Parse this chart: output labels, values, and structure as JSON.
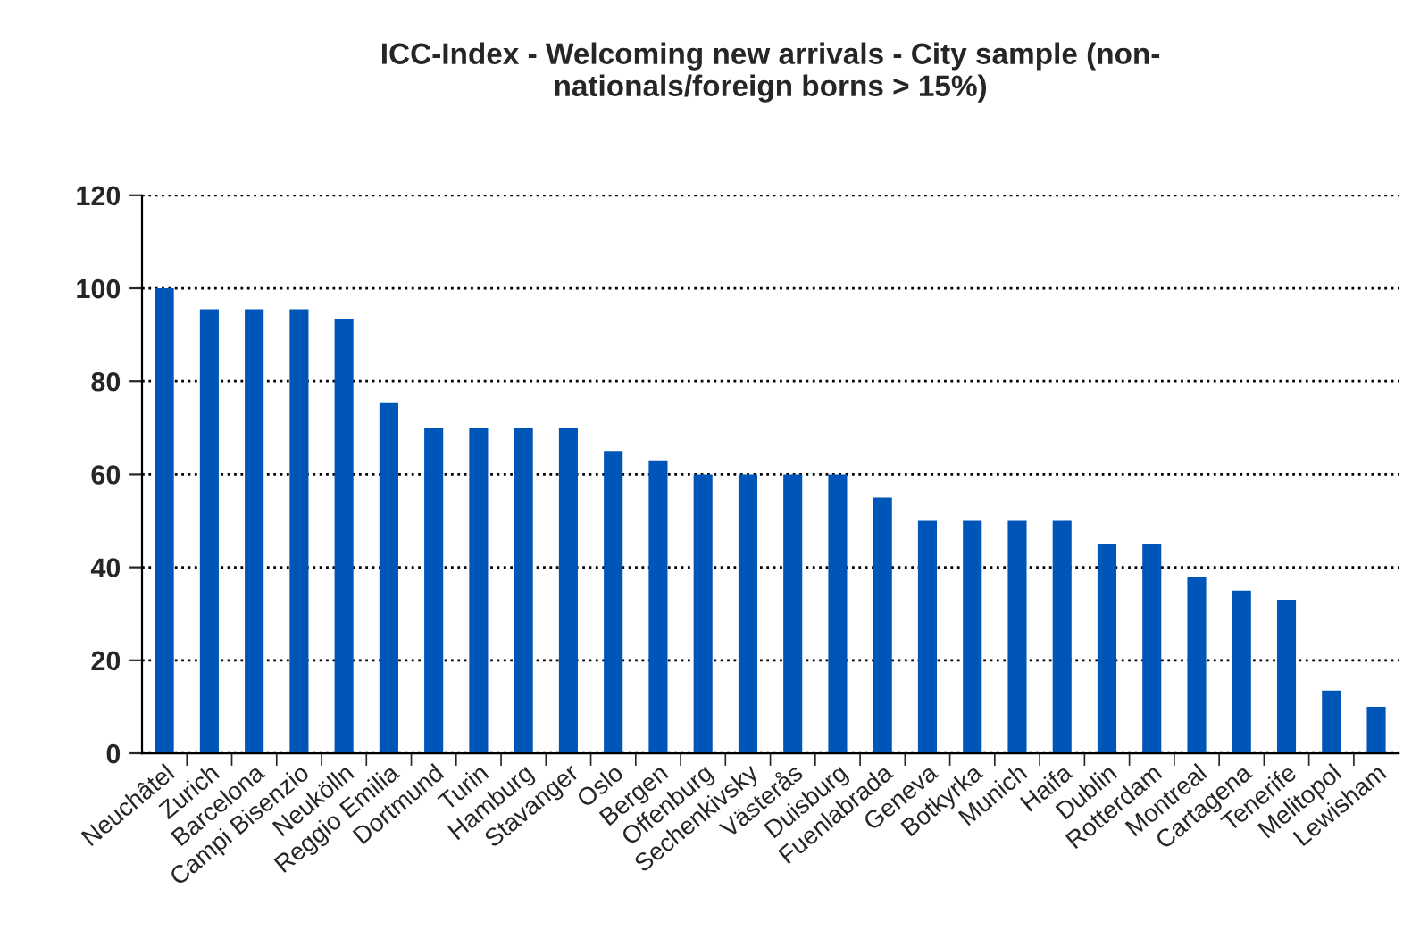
{
  "chart_data": {
    "type": "bar",
    "title": "ICC-Index - Welcoming new arrivals - City sample (non-\nnationals/foreign borns > 15%)",
    "categories": [
      "Neuchâtel",
      "Zurich",
      "Barcelona",
      "Campi Bisenzio",
      "Neukölln",
      "Reggio Emilia",
      "Dortmund",
      "Turin",
      "Hamburg",
      "Stavanger",
      "Oslo",
      "Bergen",
      "Offenburg",
      "Sechenkivsky",
      "Västerås",
      "Duisburg",
      "Fuenlabrada",
      "Geneva",
      "Botkyrka",
      "Munich",
      "Haifa",
      "Dublin",
      "Rotterdam",
      "Montreal",
      "Cartagena",
      "Tenerife",
      "Melitopol",
      "Lewisham"
    ],
    "values": [
      100,
      95.5,
      95.5,
      95.5,
      93.5,
      75.5,
      70,
      70,
      70,
      70,
      65,
      63,
      60,
      60,
      60,
      60,
      55,
      50,
      50,
      50,
      50,
      45,
      45,
      38,
      35,
      33,
      13.5,
      10
    ],
    "color": "#0055b8",
    "ylim": [
      0,
      120
    ],
    "yticks": [
      0,
      20,
      40,
      60,
      80,
      100,
      120
    ],
    "grid": "y"
  }
}
